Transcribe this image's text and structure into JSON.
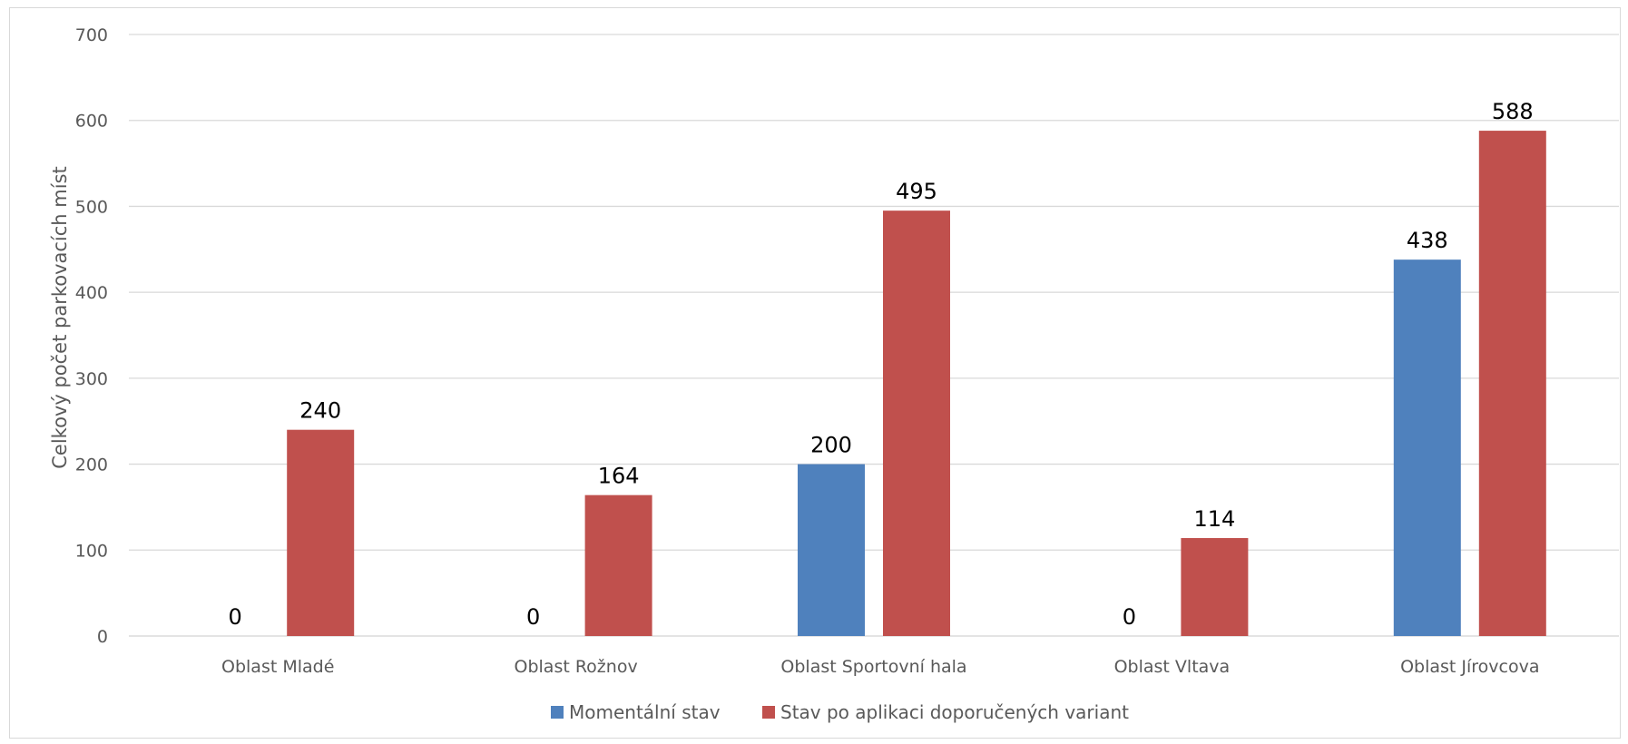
{
  "chart_data": {
    "type": "bar",
    "title": "",
    "xlabel": "",
    "ylabel": "Celkový počet parkovacích míst",
    "ylim": [
      0,
      700
    ],
    "yticks": [
      0,
      100,
      200,
      300,
      400,
      500,
      600,
      700
    ],
    "grid": true,
    "legend_position": "bottom",
    "categories": [
      "Oblast Mladé",
      "Oblast Rožnov",
      "Oblast Sportovní hala",
      "Oblast Vltava",
      "Oblast Jírovcova"
    ],
    "series": [
      {
        "name": "Momentální stav",
        "color": "#4f81bd",
        "values": [
          0,
          0,
          200,
          0,
          438
        ]
      },
      {
        "name": "Stav po aplikaci doporučených variant",
        "color": "#c0504d",
        "values": [
          240,
          164,
          495,
          114,
          588
        ]
      }
    ]
  }
}
